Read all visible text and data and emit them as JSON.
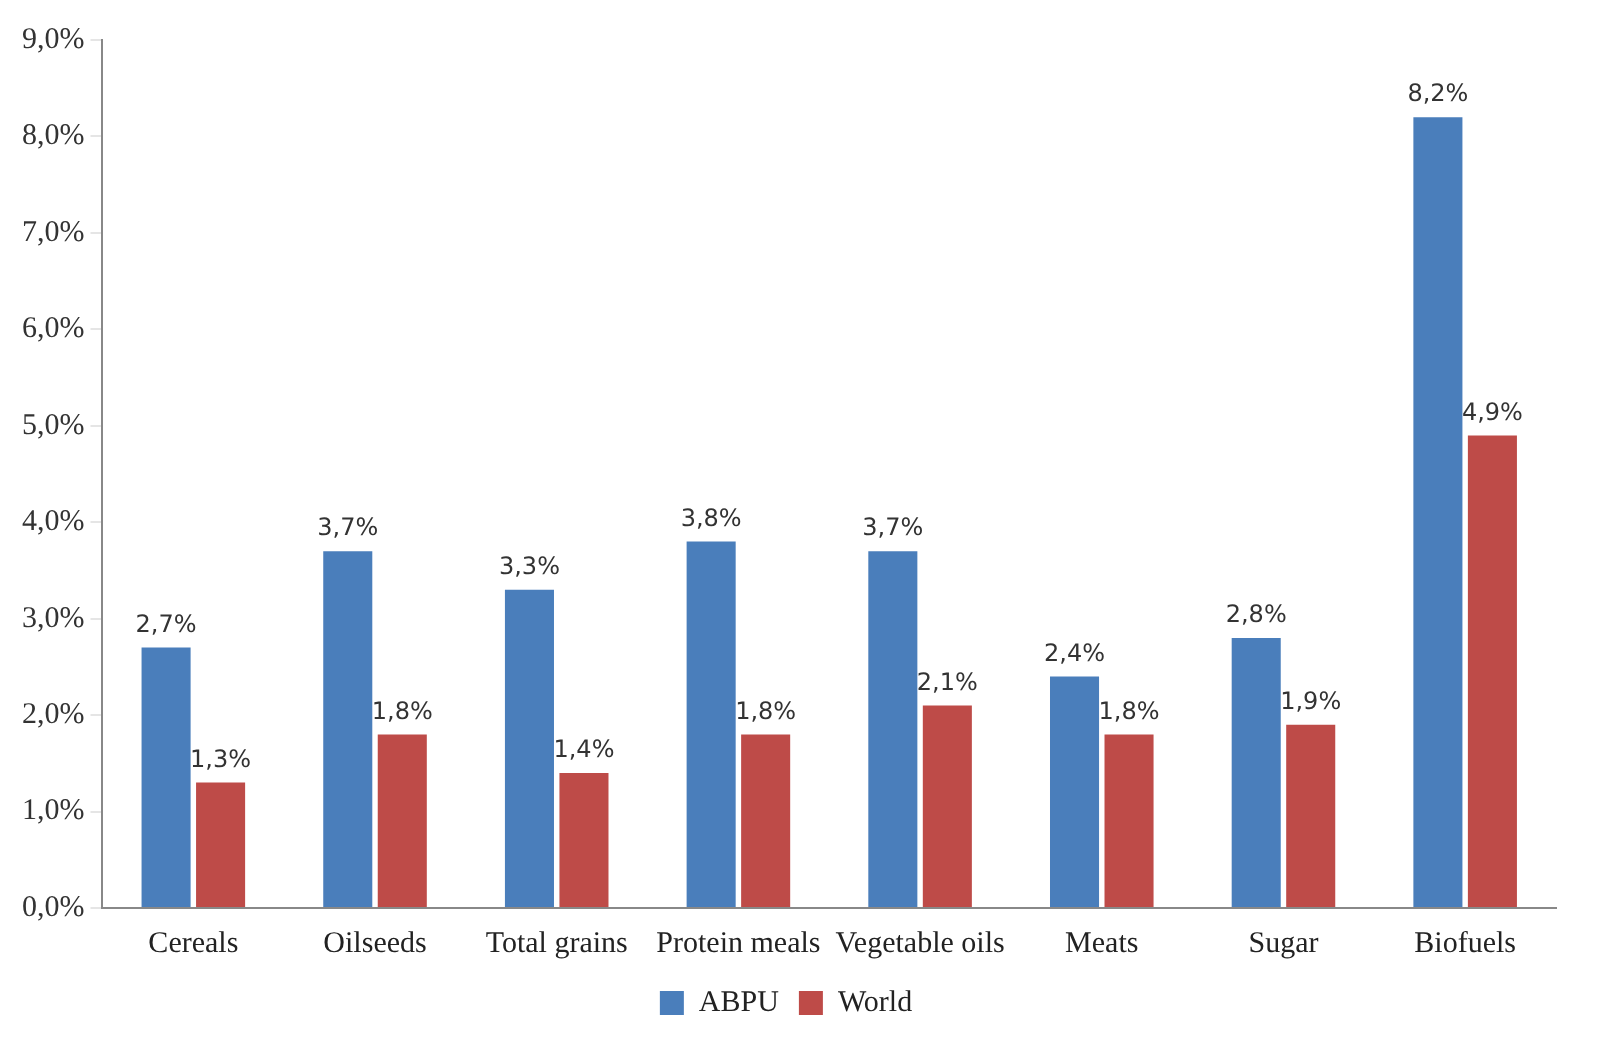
{
  "chart_data": {
    "type": "bar",
    "categories": [
      "Cereals",
      "Oilseeds",
      "Total grains",
      "Protein meals",
      "Vegetable oils",
      "Meats",
      "Sugar",
      "Biofuels"
    ],
    "series": [
      {
        "name": "ABPU",
        "color": "#4a7ebb",
        "values": [
          2.7,
          3.7,
          3.3,
          3.8,
          3.7,
          2.4,
          2.8,
          8.2
        ],
        "value_labels": [
          "2,7%",
          "3,7%",
          "3,3%",
          "3,8%",
          "3,7%",
          "2,4%",
          "2,8%",
          "8,2%"
        ]
      },
      {
        "name": "World",
        "color": "#be4b48",
        "values": [
          1.3,
          1.8,
          1.4,
          1.8,
          2.1,
          1.8,
          1.9,
          4.9
        ],
        "value_labels": [
          "1,3%",
          "1,8%",
          "1,4%",
          "1,8%",
          "2,1%",
          "1,8%",
          "1,9%",
          "4,9%"
        ]
      }
    ],
    "ylim": [
      0,
      9
    ],
    "yticks": [
      {
        "value": 0,
        "label": "0,0%"
      },
      {
        "value": 1,
        "label": "1,0%"
      },
      {
        "value": 2,
        "label": "2,0%"
      },
      {
        "value": 3,
        "label": "3,0%"
      },
      {
        "value": 4,
        "label": "4,0%"
      },
      {
        "value": 5,
        "label": "5,0%"
      },
      {
        "value": 6,
        "label": "6,0%"
      },
      {
        "value": 7,
        "label": "7,0%"
      },
      {
        "value": 8,
        "label": "8,0%"
      },
      {
        "value": 9,
        "label": "9,0%"
      }
    ],
    "grid": false,
    "legend": "bottom"
  }
}
